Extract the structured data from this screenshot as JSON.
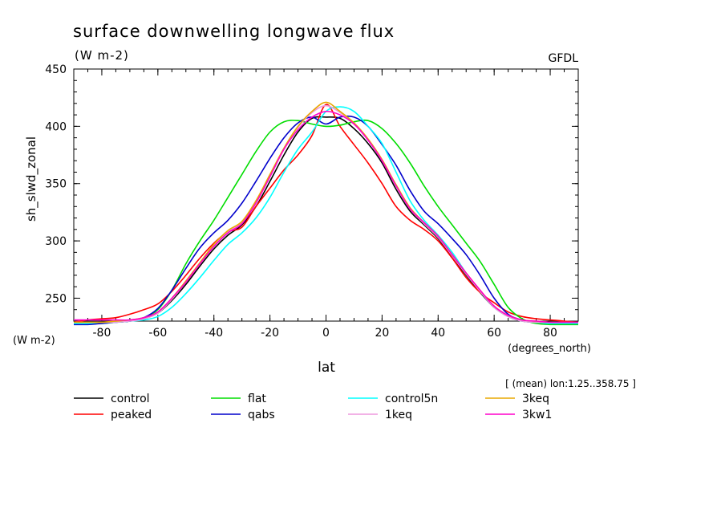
{
  "chart_data": {
    "type": "line",
    "title": "surface downwelling longwave flux",
    "subtitle": "(W m-2)",
    "source_label": "GFDL",
    "xlabel": "lat",
    "xunits": "(degrees_north)",
    "ylabel": "sh_slwd_zonal",
    "yunits": "(W m-2)",
    "footnote": "[ (mean) lon:1.25..358.75 ]",
    "xlim": [
      -90,
      90
    ],
    "ylim": [
      230,
      450
    ],
    "xticks": [
      -80,
      -60,
      -40,
      -20,
      0,
      20,
      40,
      60,
      80
    ],
    "xtick_labels": [
      "-80",
      "-60",
      "-40",
      "-20",
      "0",
      "20",
      "40",
      "60",
      "80"
    ],
    "yticks": [
      250,
      300,
      350,
      400,
      450
    ],
    "ytick_labels": [
      "250",
      "300",
      "350",
      "400",
      "450"
    ],
    "legend_position": "bottom",
    "x": [
      -90,
      -85,
      -80,
      -75,
      -70,
      -65,
      -60,
      -55,
      -50,
      -45,
      -40,
      -35,
      -30,
      -25,
      -20,
      -15,
      -10,
      -5,
      0,
      5,
      10,
      15,
      20,
      25,
      30,
      35,
      40,
      45,
      50,
      55,
      60,
      65,
      70,
      75,
      80,
      85,
      90
    ],
    "series": [
      {
        "name": "control",
        "color": "#000000",
        "values": [
          228,
          228,
          229,
          229,
          230,
          232,
          237,
          248,
          262,
          278,
          293,
          305,
          314,
          330,
          352,
          375,
          395,
          407,
          408,
          407,
          398,
          385,
          368,
          345,
          326,
          314,
          302,
          286,
          270,
          255,
          242,
          234,
          230,
          229,
          228,
          228,
          228
        ]
      },
      {
        "name": "peaked",
        "color": "#ff0000",
        "values": [
          229,
          231,
          232,
          233,
          236,
          240,
          245,
          256,
          270,
          285,
          298,
          308,
          312,
          330,
          346,
          362,
          375,
          392,
          419,
          400,
          384,
          368,
          350,
          330,
          318,
          310,
          300,
          285,
          268,
          255,
          246,
          238,
          234,
          232,
          231,
          230,
          229
        ]
      },
      {
        "name": "flat",
        "color": "#00dd00",
        "values": [
          228,
          228,
          228,
          229,
          230,
          233,
          240,
          257,
          280,
          300,
          318,
          338,
          358,
          378,
          395,
          404,
          405,
          402,
          400,
          401,
          404,
          405,
          398,
          385,
          368,
          348,
          330,
          314,
          298,
          282,
          262,
          242,
          232,
          228,
          227,
          227,
          227
        ]
      },
      {
        "name": "qabs",
        "color": "#0000cc",
        "values": [
          227,
          227,
          228,
          229,
          230,
          233,
          241,
          257,
          276,
          294,
          307,
          318,
          333,
          352,
          372,
          390,
          403,
          408,
          402,
          408,
          408,
          400,
          384,
          366,
          344,
          326,
          315,
          302,
          288,
          270,
          250,
          236,
          231,
          229,
          228,
          228,
          228
        ]
      },
      {
        "name": "control5n",
        "color": "#00ffff",
        "values": [
          228,
          228,
          229,
          229,
          230,
          231,
          234,
          242,
          254,
          268,
          283,
          297,
          307,
          320,
          338,
          360,
          380,
          395,
          413,
          417,
          413,
          400,
          385,
          360,
          335,
          318,
          305,
          290,
          272,
          256,
          242,
          234,
          230,
          229,
          228,
          228,
          228
        ]
      },
      {
        "name": "1keq",
        "color": "#ee99dd",
        "values": [
          229,
          229,
          229,
          229,
          230,
          232,
          237,
          249,
          264,
          280,
          296,
          308,
          316,
          334,
          357,
          380,
          399,
          412,
          418,
          412,
          402,
          388,
          370,
          348,
          328,
          315,
          303,
          287,
          271,
          256,
          242,
          234,
          230,
          229,
          229,
          229,
          229
        ]
      },
      {
        "name": "3keq",
        "color": "#e8a800",
        "values": [
          229,
          229,
          229,
          230,
          231,
          233,
          238,
          250,
          265,
          281,
          297,
          309,
          317,
          335,
          358,
          381,
          400,
          413,
          421,
          413,
          403,
          389,
          371,
          349,
          329,
          316,
          304,
          288,
          272,
          257,
          243,
          235,
          231,
          230,
          229,
          229,
          229
        ]
      },
      {
        "name": "3kw1",
        "color": "#ff00cc",
        "values": [
          231,
          231,
          231,
          231,
          231,
          233,
          238,
          250,
          264,
          280,
          295,
          307,
          315,
          333,
          356,
          380,
          397,
          408,
          413,
          410,
          402,
          388,
          370,
          348,
          328,
          316,
          304,
          288,
          272,
          257,
          243,
          235,
          231,
          230,
          229,
          229,
          229
        ]
      }
    ]
  }
}
